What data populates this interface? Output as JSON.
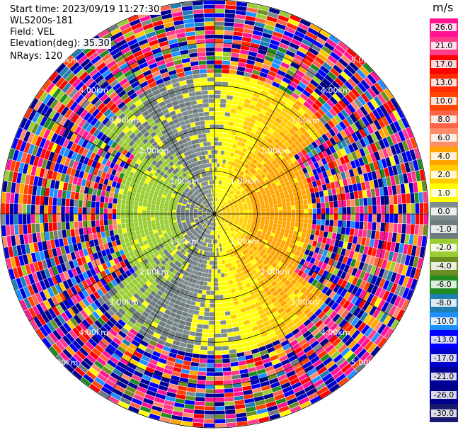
{
  "info": {
    "start_time": "Start time: 2023/09/19 11:27:30",
    "instrument": "WLS200s-181",
    "field": "Field: VEL",
    "elevation": "Elevation(deg): 35.30",
    "nrays": "NRays: 120"
  },
  "colorbar": {
    "units": "m/s",
    "ticks": [
      "26.0",
      "21.0",
      "17.0",
      "13.0",
      "10.0",
      "8.0",
      "6.0",
      "4.0",
      "2.0",
      "1.0",
      "0.0",
      "-1.0",
      "-2.0",
      "-4.0",
      "-6.0",
      "-8.0",
      "-10.0",
      "-13.0",
      "-17.0",
      "-21.0",
      "-26.0",
      "-30.0"
    ],
    "colors": [
      "#ff1493",
      "#ff3c8c",
      "#ff0000",
      "#ff2a00",
      "#ff4500",
      "#ff6347",
      "#ff8c69",
      "#ffa500",
      "#ffcc00",
      "#ffff00",
      "#7f8c8d",
      "#6e7b7c",
      "#9acd32",
      "#6b8e23",
      "#228b22",
      "#1e7fb0",
      "#1e90ff",
      "#0000ff",
      "#0000cd",
      "#000099",
      "#00008b",
      "#191970"
    ]
  },
  "chart_data": {
    "type": "ppi",
    "title": "",
    "field": "VEL",
    "units": "m/s",
    "nrays": 120,
    "range_rings_km": [
      1.0,
      2.0,
      3.0,
      4.0,
      5.0
    ],
    "range_labels": [
      "1.00km",
      "2.00km",
      "3.00km",
      "4.00km",
      "5.00km"
    ],
    "max_range_km": 5.0,
    "gate_spacing_km": 0.1,
    "velocity_range": [
      -30,
      26
    ],
    "grid": true
  }
}
